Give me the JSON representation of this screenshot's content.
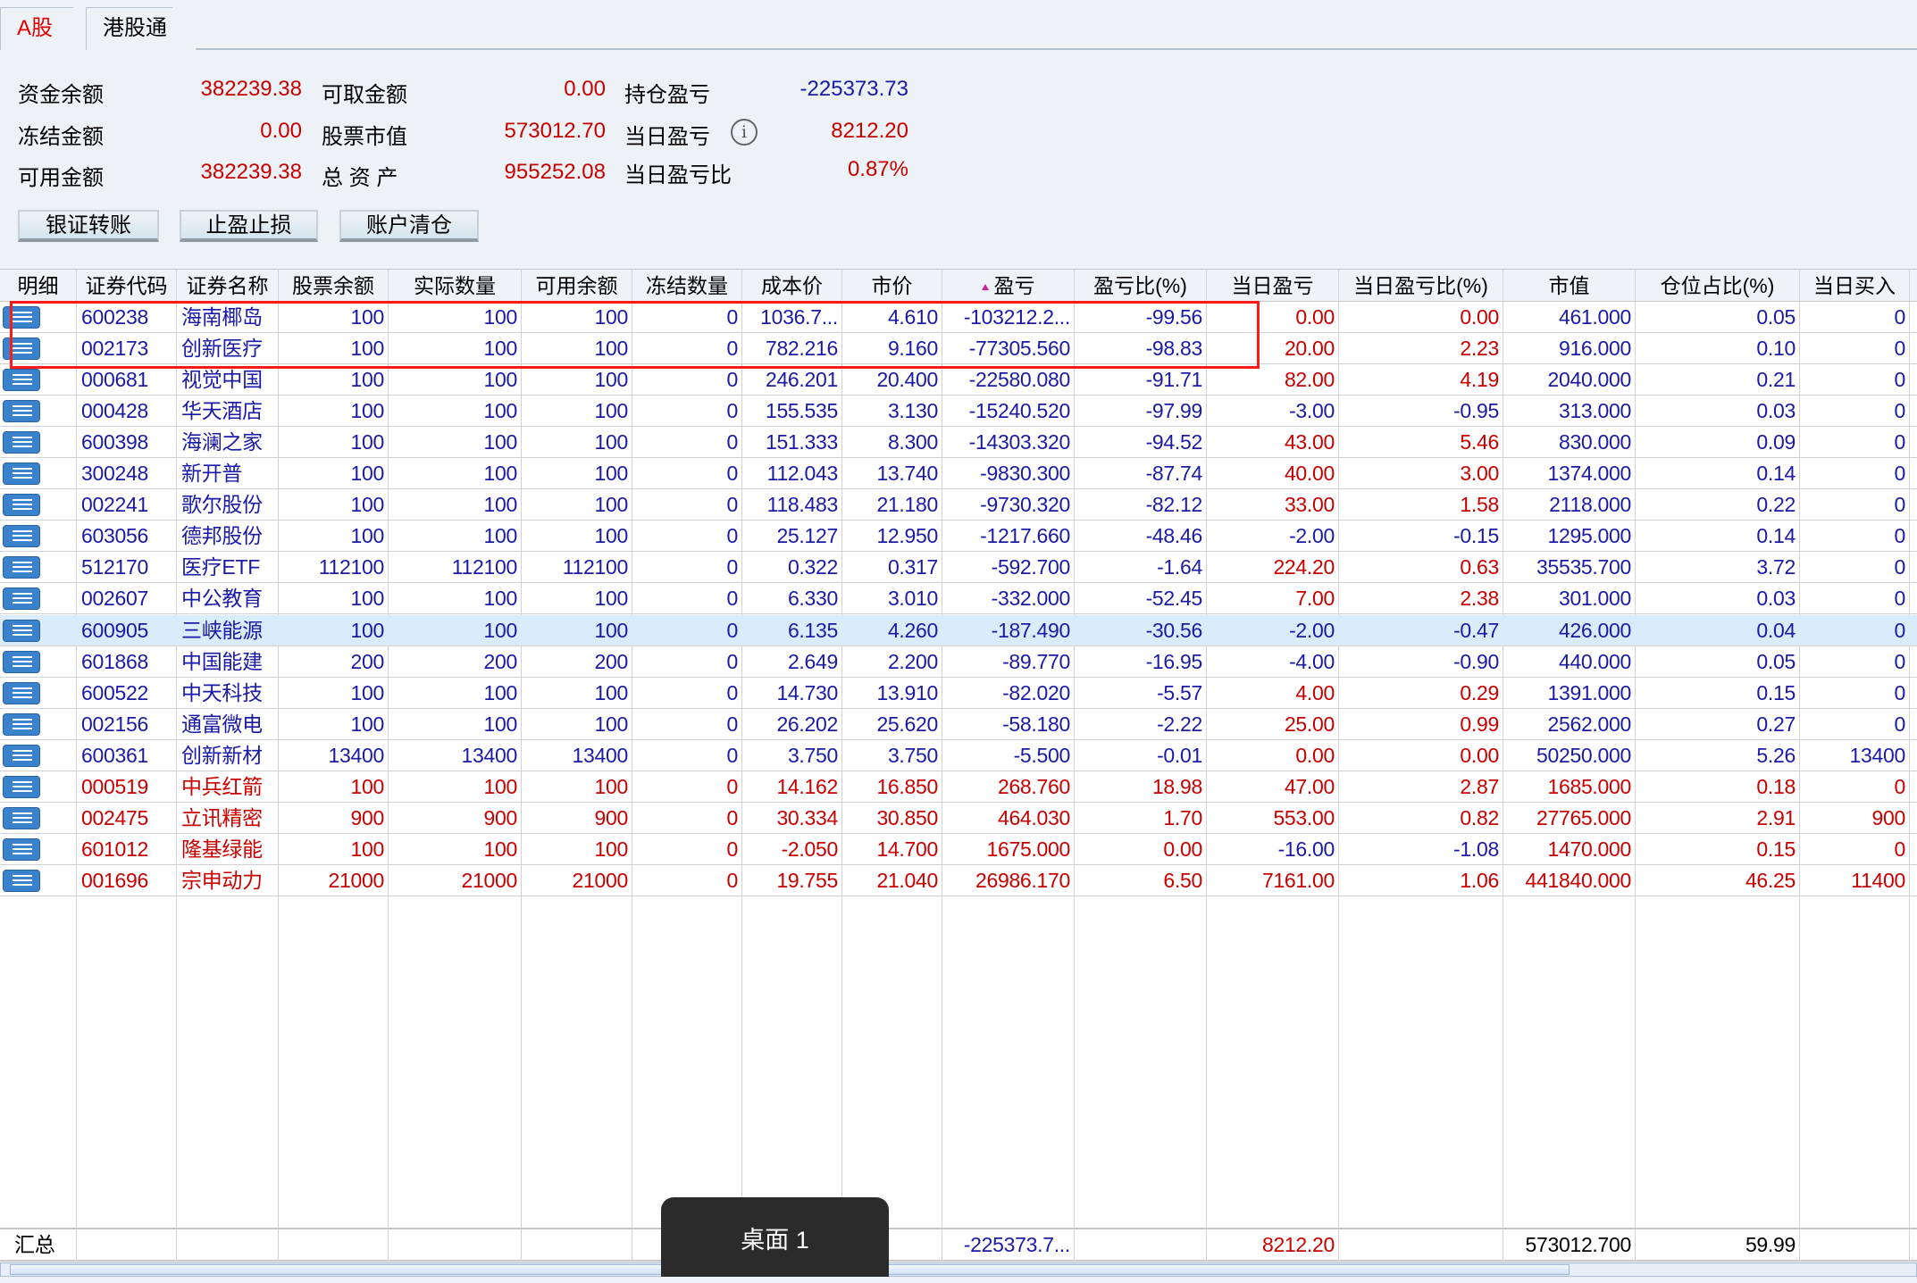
{
  "tabs": [
    {
      "label": "A股",
      "active": true
    },
    {
      "label": "港股通",
      "active": false
    }
  ],
  "summary": {
    "col1": [
      {
        "label": "资金余额",
        "value": "382239.38"
      },
      {
        "label": "冻结金额",
        "value": "0.00"
      },
      {
        "label": "可用金额",
        "value": "382239.38"
      }
    ],
    "col2": [
      {
        "label": "可取金额",
        "value": "0.00"
      },
      {
        "label": "股票市值",
        "value": "573012.70"
      },
      {
        "label": "总 资 产",
        "value": "955252.08"
      }
    ],
    "col3": [
      {
        "label": "持仓盈亏",
        "value": "-225373.73"
      },
      {
        "label": "当日盈亏",
        "value": "8212.20"
      },
      {
        "label": "当日盈亏比",
        "value": "0.87%"
      }
    ],
    "info_icon": "info-circle-icon"
  },
  "buttons": [
    "银证转账",
    "止盈止损",
    "账户清仓"
  ],
  "colors": {
    "positive": "#c80000",
    "negative": "#1a1aa6",
    "selected_row": "#d8ecfb",
    "highlight_box": "#ff1a1a"
  },
  "table": {
    "columns": [
      "明细",
      "证券代码",
      "证券名称",
      "股票余额",
      "实际数量",
      "可用余额",
      "冻结数量",
      "成本价",
      "市价",
      "盈亏",
      "盈亏比(%)",
      "当日盈亏",
      "当日盈亏比(%)",
      "市值",
      "仓位占比(%)",
      "当日买入"
    ],
    "sort_column": "盈亏",
    "selected_row": 10,
    "highlighted_rows": [
      0,
      1
    ],
    "rows": [
      [
        "600238",
        "海南椰岛",
        "100",
        "100",
        "100",
        "0",
        "1036.7...",
        "4.610",
        "-103212.2...",
        "-99.56",
        "0.00",
        "0.00",
        "461.000",
        "0.05",
        "0"
      ],
      [
        "002173",
        "创新医疗",
        "100",
        "100",
        "100",
        "0",
        "782.216",
        "9.160",
        "-77305.560",
        "-98.83",
        "20.00",
        "2.23",
        "916.000",
        "0.10",
        "0"
      ],
      [
        "000681",
        "视觉中国",
        "100",
        "100",
        "100",
        "0",
        "246.201",
        "20.400",
        "-22580.080",
        "-91.71",
        "82.00",
        "4.19",
        "2040.000",
        "0.21",
        "0"
      ],
      [
        "000428",
        "华天酒店",
        "100",
        "100",
        "100",
        "0",
        "155.535",
        "3.130",
        "-15240.520",
        "-97.99",
        "-3.00",
        "-0.95",
        "313.000",
        "0.03",
        "0"
      ],
      [
        "600398",
        "海澜之家",
        "100",
        "100",
        "100",
        "0",
        "151.333",
        "8.300",
        "-14303.320",
        "-94.52",
        "43.00",
        "5.46",
        "830.000",
        "0.09",
        "0"
      ],
      [
        "300248",
        "新开普",
        "100",
        "100",
        "100",
        "0",
        "112.043",
        "13.740",
        "-9830.300",
        "-87.74",
        "40.00",
        "3.00",
        "1374.000",
        "0.14",
        "0"
      ],
      [
        "002241",
        "歌尔股份",
        "100",
        "100",
        "100",
        "0",
        "118.483",
        "21.180",
        "-9730.320",
        "-82.12",
        "33.00",
        "1.58",
        "2118.000",
        "0.22",
        "0"
      ],
      [
        "603056",
        "德邦股份",
        "100",
        "100",
        "100",
        "0",
        "25.127",
        "12.950",
        "-1217.660",
        "-48.46",
        "-2.00",
        "-0.15",
        "1295.000",
        "0.14",
        "0"
      ],
      [
        "512170",
        "医疗ETF",
        "112100",
        "112100",
        "112100",
        "0",
        "0.322",
        "0.317",
        "-592.700",
        "-1.64",
        "224.20",
        "0.63",
        "35535.700",
        "3.72",
        "0"
      ],
      [
        "002607",
        "中公教育",
        "100",
        "100",
        "100",
        "0",
        "6.330",
        "3.010",
        "-332.000",
        "-52.45",
        "7.00",
        "2.38",
        "301.000",
        "0.03",
        "0"
      ],
      [
        "600905",
        "三峡能源",
        "100",
        "100",
        "100",
        "0",
        "6.135",
        "4.260",
        "-187.490",
        "-30.56",
        "-2.00",
        "-0.47",
        "426.000",
        "0.04",
        "0"
      ],
      [
        "601868",
        "中国能建",
        "200",
        "200",
        "200",
        "0",
        "2.649",
        "2.200",
        "-89.770",
        "-16.95",
        "-4.00",
        "-0.90",
        "440.000",
        "0.05",
        "0"
      ],
      [
        "600522",
        "中天科技",
        "100",
        "100",
        "100",
        "0",
        "14.730",
        "13.910",
        "-82.020",
        "-5.57",
        "4.00",
        "0.29",
        "1391.000",
        "0.15",
        "0"
      ],
      [
        "002156",
        "通富微电",
        "100",
        "100",
        "100",
        "0",
        "26.202",
        "25.620",
        "-58.180",
        "-2.22",
        "25.00",
        "0.99",
        "2562.000",
        "0.27",
        "0"
      ],
      [
        "600361",
        "创新新材",
        "13400",
        "13400",
        "13400",
        "0",
        "3.750",
        "3.750",
        "-5.500",
        "-0.01",
        "0.00",
        "0.00",
        "50250.000",
        "5.26",
        "13400"
      ],
      [
        "000519",
        "中兵红箭",
        "100",
        "100",
        "100",
        "0",
        "14.162",
        "16.850",
        "268.760",
        "18.98",
        "47.00",
        "2.87",
        "1685.000",
        "0.18",
        "0"
      ],
      [
        "002475",
        "立讯精密",
        "900",
        "900",
        "900",
        "0",
        "30.334",
        "30.850",
        "464.030",
        "1.70",
        "553.00",
        "0.82",
        "27765.000",
        "2.91",
        "900"
      ],
      [
        "601012",
        "隆基绿能",
        "100",
        "100",
        "100",
        "0",
        "-2.050",
        "14.700",
        "1675.000",
        "0.00",
        "-16.00",
        "-1.08",
        "1470.000",
        "0.15",
        "0"
      ],
      [
        "001696",
        "宗申动力",
        "21000",
        "21000",
        "21000",
        "0",
        "19.755",
        "21.040",
        "26986.170",
        "6.50",
        "7161.00",
        "1.06",
        "441840.000",
        "46.25",
        "11400"
      ]
    ],
    "totals": {
      "label": "汇总",
      "pnl": "-225373.7...",
      "day_pnl": "8212.20",
      "market_value": "573012.700",
      "position_ratio": "59.99"
    }
  },
  "taskbar_popup": "桌面 1"
}
